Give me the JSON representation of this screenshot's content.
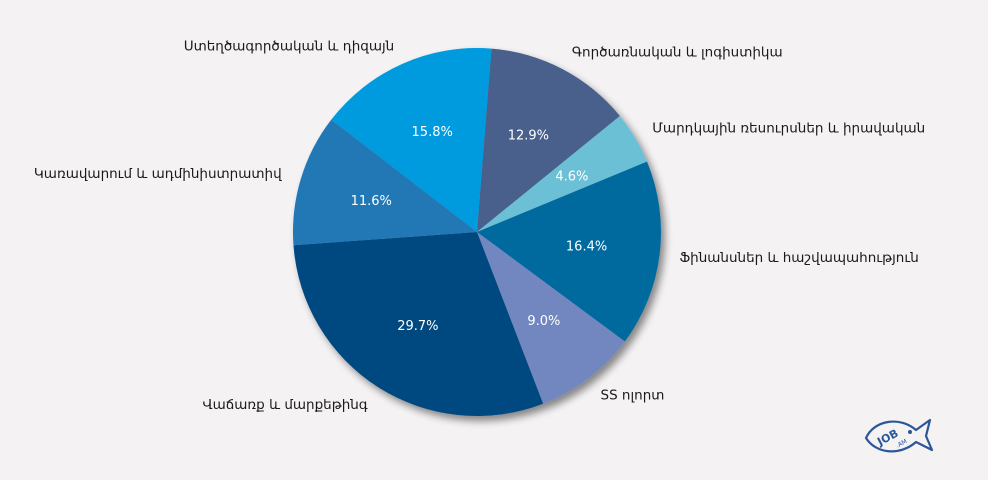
{
  "chart_data": {
    "type": "pie",
    "title": "",
    "start_angle_deg": 4.5,
    "direction": "clockwise",
    "slices": [
      {
        "label": "Գործառնական և լոգիստիկա",
        "value": 12.9,
        "pct_label": "12.9%",
        "color": "#4a5e8c"
      },
      {
        "label": "Մարդկային ռեսուրսներ և իրավական",
        "value": 4.6,
        "pct_label": "4.6%",
        "color": "#6cc0d6"
      },
      {
        "label": "Ֆինանսներ և հաշվապահություն",
        "value": 16.4,
        "pct_label": "16.4%",
        "color": "#00699e"
      },
      {
        "label": "SS ոլորտ",
        "value": 9.0,
        "pct_label": "9.0%",
        "color": "#7287c0"
      },
      {
        "label": "Վաճառք և մարքեթինգ",
        "value": 29.7,
        "pct_label": "29.7%",
        "color": "#004a80"
      },
      {
        "label": "Կառավարում և ադմինիստրատիվ",
        "value": 11.6,
        "pct_label": "11.6%",
        "color": "#2378b5"
      },
      {
        "label": "Ստեղծագործական և դիզայն",
        "value": 15.8,
        "pct_label": "15.8%",
        "color": "#009ade"
      }
    ]
  },
  "logo": {
    "text": "JOB.AM",
    "color": "#2b5799"
  }
}
